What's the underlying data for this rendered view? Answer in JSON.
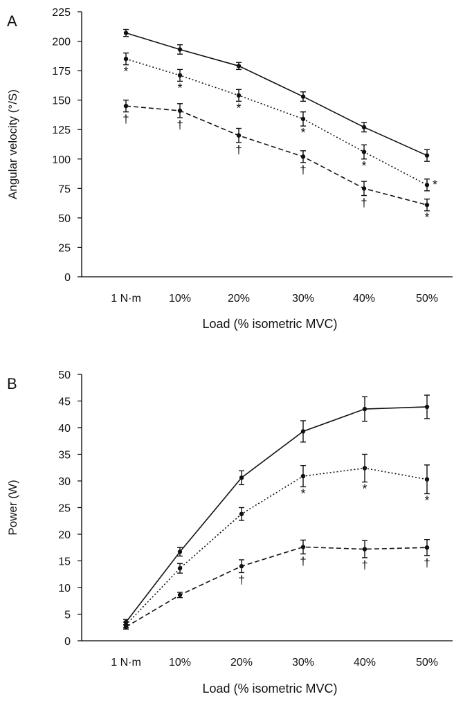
{
  "chart_data": [
    {
      "type": "line",
      "panel_label": "A",
      "categories": [
        "1 N·m",
        "10%",
        "20%",
        "30%",
        "40%",
        "50%"
      ],
      "xlabel": "Load (% isometric MVC)",
      "ylabel": "Angular velocity (°/S)",
      "ylim": [
        0,
        225
      ],
      "yticks": [
        0,
        25,
        50,
        75,
        100,
        125,
        150,
        175,
        200,
        225
      ],
      "grid": false,
      "legend": "none",
      "series": [
        {
          "style": "solid",
          "values": [
            207,
            193,
            179,
            153,
            127,
            103
          ],
          "errors": [
            3,
            4,
            3,
            4,
            4,
            5
          ],
          "annotations": [
            "",
            "",
            "",
            "",
            "",
            ""
          ]
        },
        {
          "style": "dotted",
          "values": [
            185,
            171,
            154,
            134,
            106,
            78
          ],
          "errors": [
            5,
            5,
            5,
            6,
            6,
            5
          ],
          "annotations": [
            "*",
            "*",
            "*",
            "*",
            "*",
            "*"
          ]
        },
        {
          "style": "dashed",
          "values": [
            145,
            141,
            120,
            102,
            75,
            61
          ],
          "errors": [
            5,
            6,
            6,
            5,
            6,
            5
          ],
          "annotations": [
            "†",
            "†",
            "†",
            "†",
            "†",
            "*"
          ]
        }
      ]
    },
    {
      "type": "line",
      "panel_label": "B",
      "categories": [
        "1 N·m",
        "10%",
        "20%",
        "30%",
        "40%",
        "50%"
      ],
      "xlabel": "Load (% isometric MVC)",
      "ylabel": "Power (W)",
      "ylim": [
        0,
        50
      ],
      "yticks": [
        0,
        5,
        10,
        15,
        20,
        25,
        30,
        35,
        40,
        45,
        50
      ],
      "grid": false,
      "legend": "none",
      "series": [
        {
          "style": "solid",
          "values": [
            3.5,
            16.7,
            30.6,
            39.3,
            43.5,
            43.9
          ],
          "errors": [
            0.5,
            0.8,
            1.3,
            2.0,
            2.3,
            2.2
          ],
          "annotations": [
            "",
            "",
            "",
            "",
            "",
            ""
          ]
        },
        {
          "style": "dotted",
          "values": [
            3.0,
            13.6,
            23.8,
            30.9,
            32.4,
            30.3
          ],
          "errors": [
            0.5,
            0.9,
            1.2,
            2.0,
            2.6,
            2.7
          ],
          "annotations": [
            "",
            "",
            "",
            "*",
            "*",
            "*"
          ]
        },
        {
          "style": "dashed",
          "values": [
            2.6,
            8.6,
            14.0,
            17.6,
            17.2,
            17.5
          ],
          "errors": [
            0.4,
            0.5,
            1.2,
            1.3,
            1.6,
            1.5
          ],
          "annotations": [
            "",
            "",
            "†",
            "†",
            "†",
            "†"
          ]
        }
      ]
    }
  ]
}
